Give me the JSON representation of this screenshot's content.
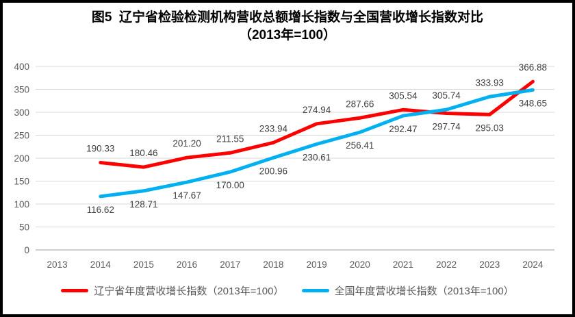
{
  "title": {
    "line1": "图5  辽宁省检验检测机构营收总额增长指数与全国营收增长指数对比",
    "line2": "（2013年=100）"
  },
  "colors": {
    "liaoning_red": "#FF0000",
    "national_blue": "#00B0F0",
    "gridline": "#D9D9D9",
    "axis_line": "#BFBFBF",
    "axis_text": "#595959",
    "data_label_text": "#404040"
  },
  "chart_data": {
    "type": "line",
    "title": "图5 辽宁省检验检测机构营收总额增长指数与全国营收增长指数对比（2013年=100）",
    "categories": [
      "2013",
      "2014",
      "2015",
      "2016",
      "2017",
      "2018",
      "2019",
      "2020",
      "2021",
      "2022",
      "2023",
      "2024"
    ],
    "first_data_category": "2014",
    "ylim": [
      0,
      400
    ],
    "yticks": [
      0,
      50,
      100,
      150,
      200,
      250,
      300,
      350,
      400
    ],
    "grid": true,
    "legend_position": "bottom",
    "value_decimals": 2,
    "series": [
      {
        "name": "辽宁省年度营收增长指数（2013年=100）",
        "color": "#FF0000",
        "values": [
          190.33,
          180.46,
          201.2,
          211.55,
          233.94,
          274.94,
          287.66,
          305.54,
          297.74,
          295.03,
          366.88
        ],
        "label_side": [
          "above",
          "above",
          "above",
          "above",
          "above",
          "above",
          "above",
          "above",
          "below",
          "below",
          "above"
        ]
      },
      {
        "name": "全国年度营收增长指数（2013年=100）",
        "color": "#00B0F0",
        "values": [
          116.62,
          128.71,
          147.67,
          170.0,
          200.96,
          230.61,
          256.41,
          292.47,
          305.74,
          333.93,
          348.65
        ],
        "label_side": [
          "below",
          "below",
          "below",
          "below",
          "below",
          "below",
          "below",
          "below",
          "above",
          "above",
          "below"
        ]
      }
    ]
  }
}
